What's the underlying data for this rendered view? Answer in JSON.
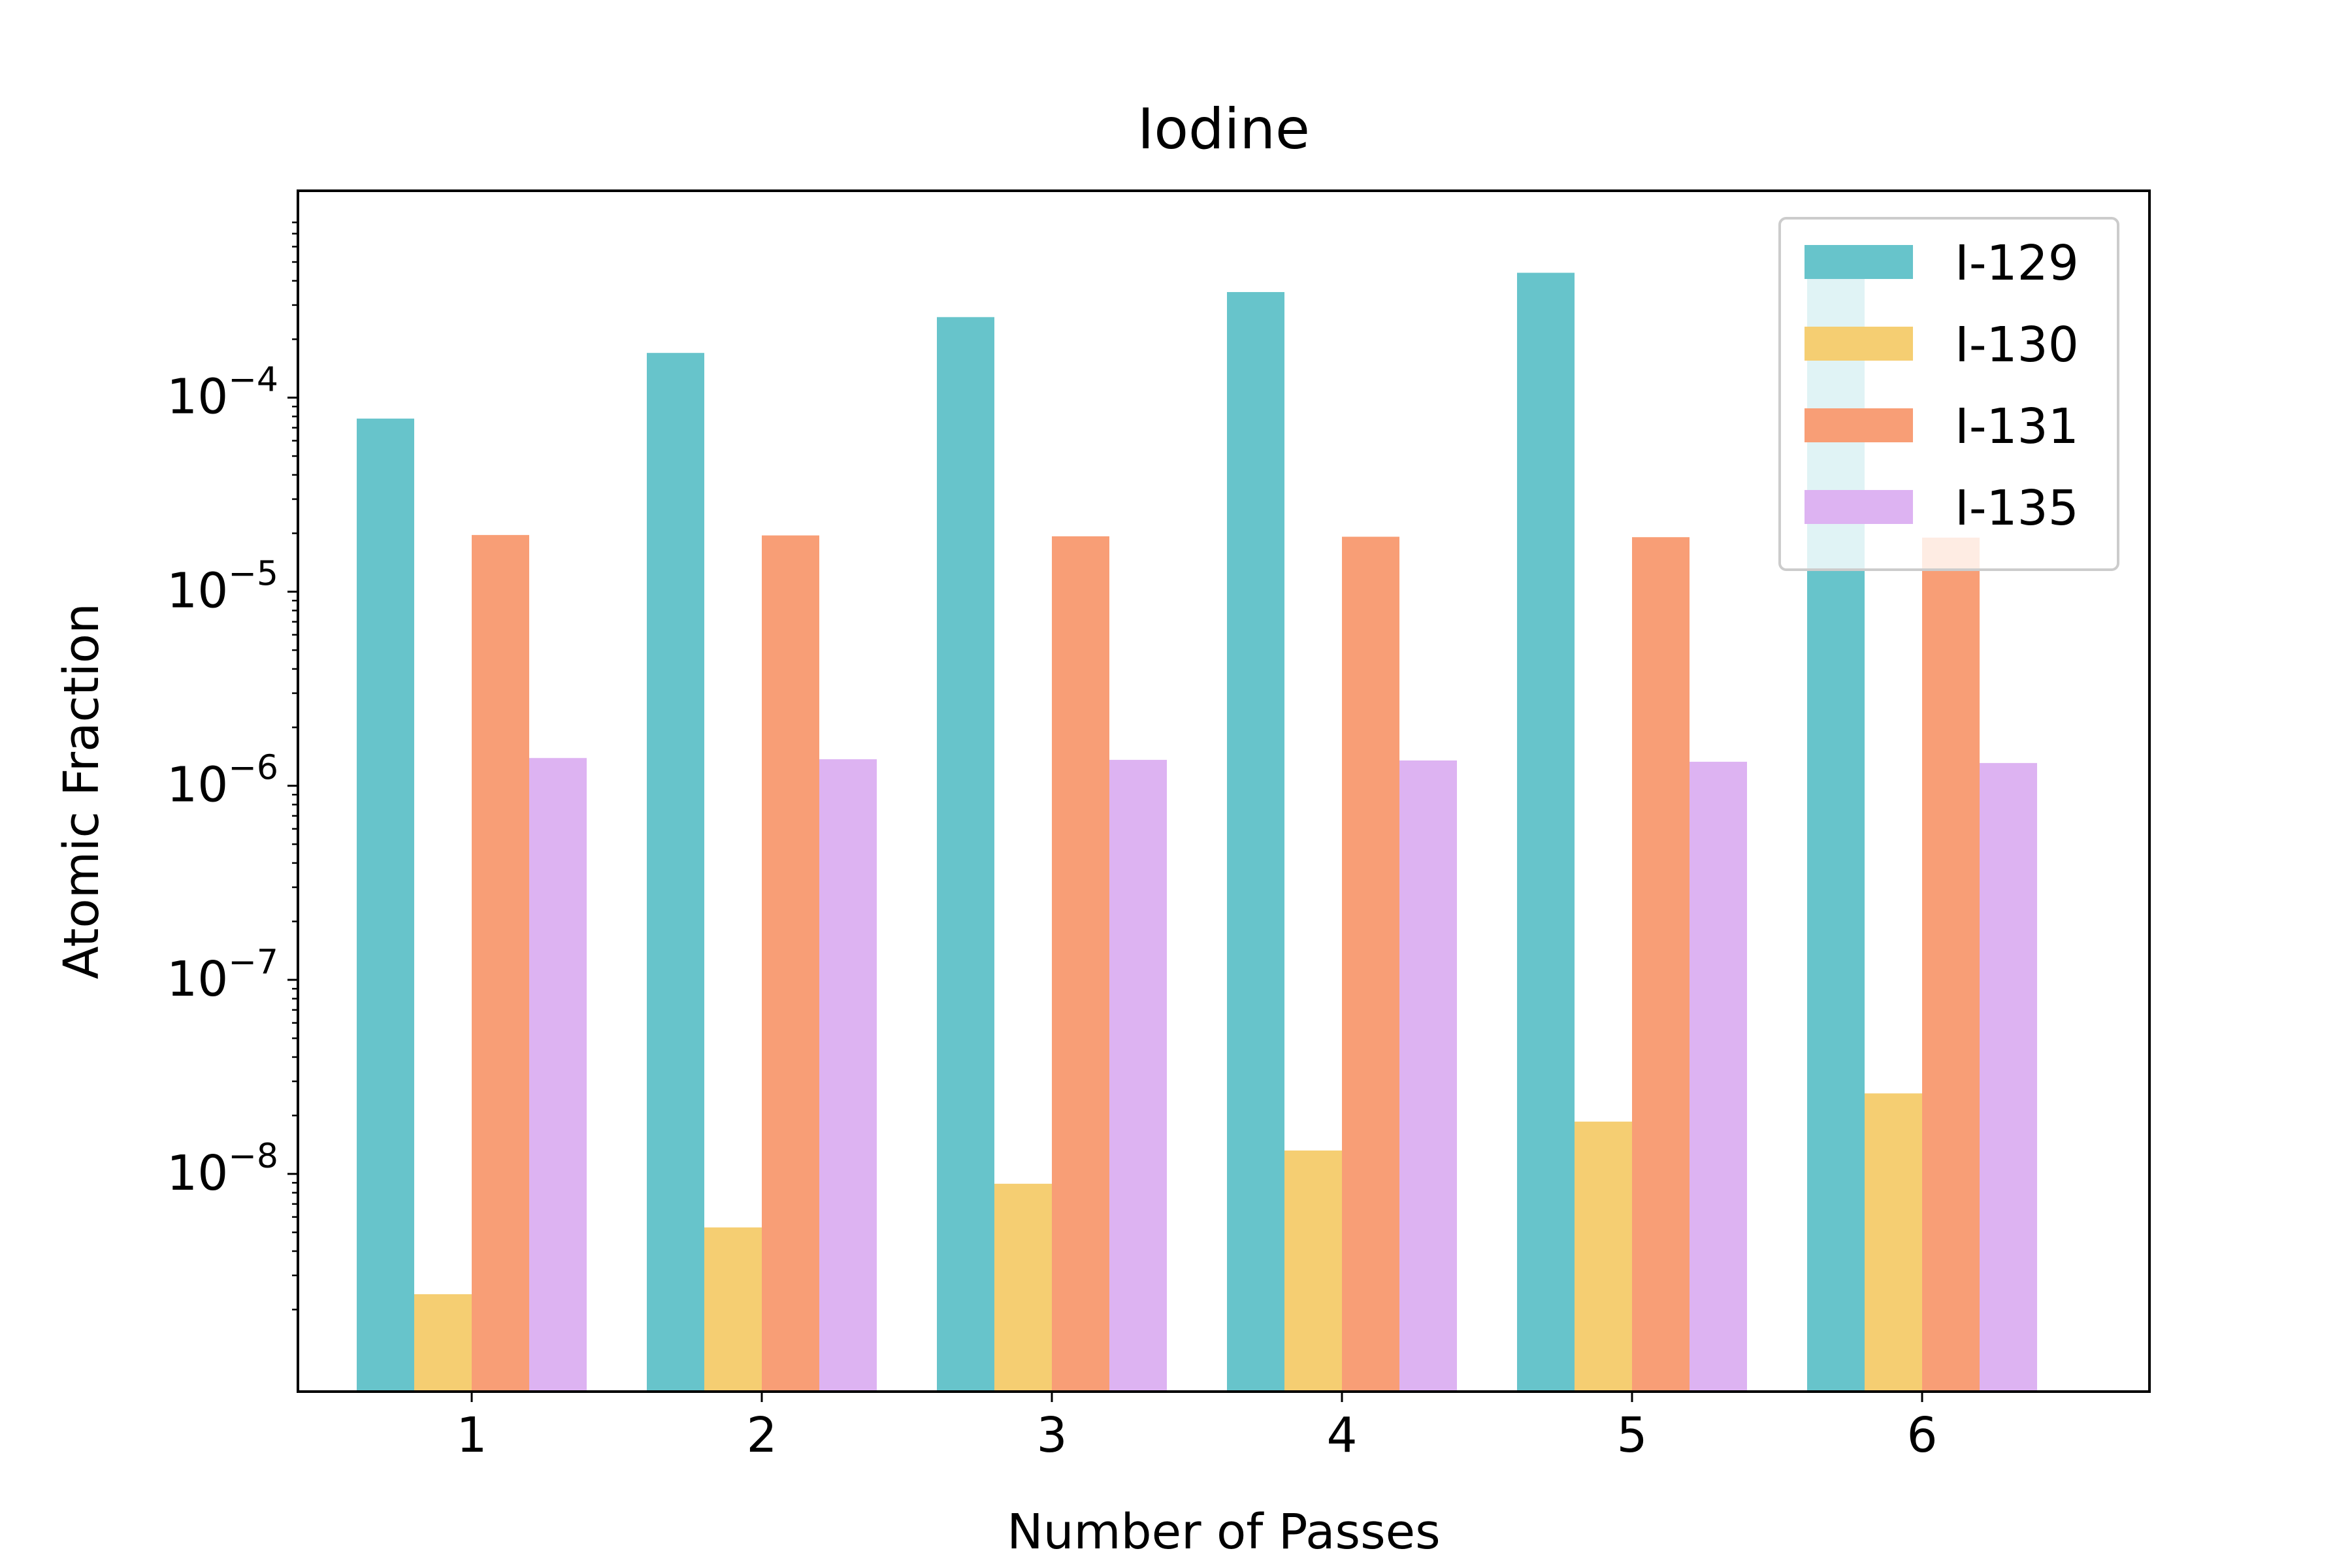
{
  "chart_data": {
    "type": "bar",
    "title": "Iodine",
    "xlabel": "Number of Passes",
    "ylabel": "Atomic Fraction",
    "categories": [
      "1",
      "2",
      "3",
      "4",
      "5",
      "6"
    ],
    "y_scale": "log",
    "ylim": [
      1.3e-09,
      0.0009
    ],
    "y_tick_labels": [
      {
        "value": 1e-08,
        "label": "10",
        "exp": "−8"
      },
      {
        "value": 1e-07,
        "label": "10",
        "exp": "−7"
      },
      {
        "value": 1e-06,
        "label": "10",
        "exp": "−6"
      },
      {
        "value": 1e-05,
        "label": "10",
        "exp": "−5"
      },
      {
        "value": 0.0001,
        "label": "10",
        "exp": "−4"
      }
    ],
    "grid": false,
    "legend_position": "top-right",
    "series": [
      {
        "name": "I-129",
        "color": "#67c4cb",
        "values": [
          7.8e-05,
          0.00017,
          0.00026,
          0.00035,
          0.00044,
          0.0005
        ]
      },
      {
        "name": "I-130",
        "color": "#f5ce72",
        "values": [
          2.4e-09,
          5.3e-09,
          8.9e-09,
          1.32e-08,
          1.86e-08,
          2.6e-08
        ]
      },
      {
        "name": "I-131",
        "color": "#f89e76",
        "values": [
          1.96e-05,
          1.95e-05,
          1.93e-05,
          1.92e-05,
          1.91e-05,
          1.9e-05
        ]
      },
      {
        "name": "I-135",
        "color": "#ddb3f2",
        "values": [
          1.39e-06,
          1.37e-06,
          1.36e-06,
          1.35e-06,
          1.33e-06,
          1.31e-06
        ]
      }
    ]
  }
}
